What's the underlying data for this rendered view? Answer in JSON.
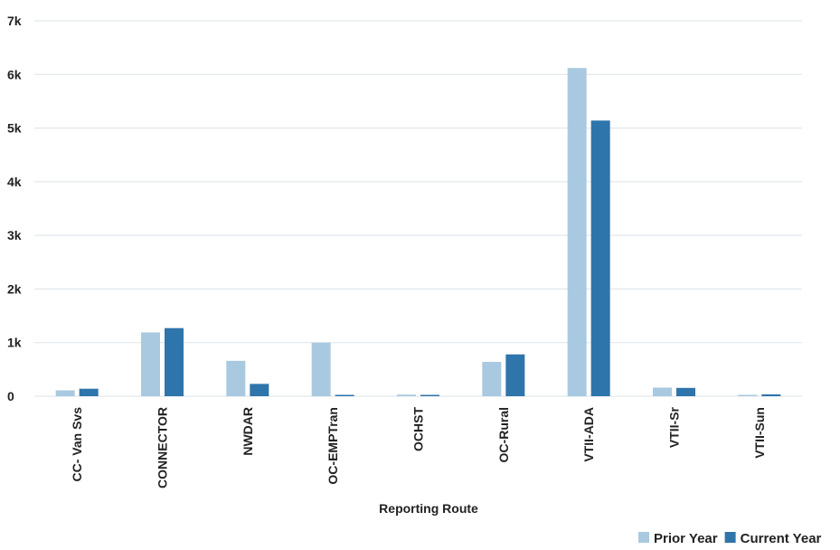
{
  "chart_data": {
    "type": "bar",
    "title": "",
    "xlabel": "Reporting Route",
    "ylabel": "",
    "ylim": [
      0,
      7000
    ],
    "yticks": [
      0,
      1000,
      2000,
      3000,
      4000,
      5000,
      6000,
      7000
    ],
    "ytick_labels": [
      "0",
      "1k",
      "2k",
      "3k",
      "4k",
      "5k",
      "6k",
      "7k"
    ],
    "categories": [
      "CC- Van Svs",
      "CONNECTOR",
      "NWDAR",
      "OC-EMPTran",
      "OCHST",
      "OC-Rural",
      "VTII-ADA",
      "VTII-Sr",
      "VTII-Sun"
    ],
    "series": [
      {
        "name": "Prior Year",
        "color": "#a9c9e0",
        "values": [
          110,
          1190,
          660,
          1000,
          30,
          640,
          6120,
          160,
          20
        ]
      },
      {
        "name": "Current Year",
        "color": "#2e75ab",
        "values": [
          140,
          1270,
          230,
          5,
          5,
          780,
          5140,
          155,
          35
        ]
      }
    ],
    "grid": true,
    "legend_position": "bottom-right",
    "gridline_color": "#dde3ea"
  }
}
